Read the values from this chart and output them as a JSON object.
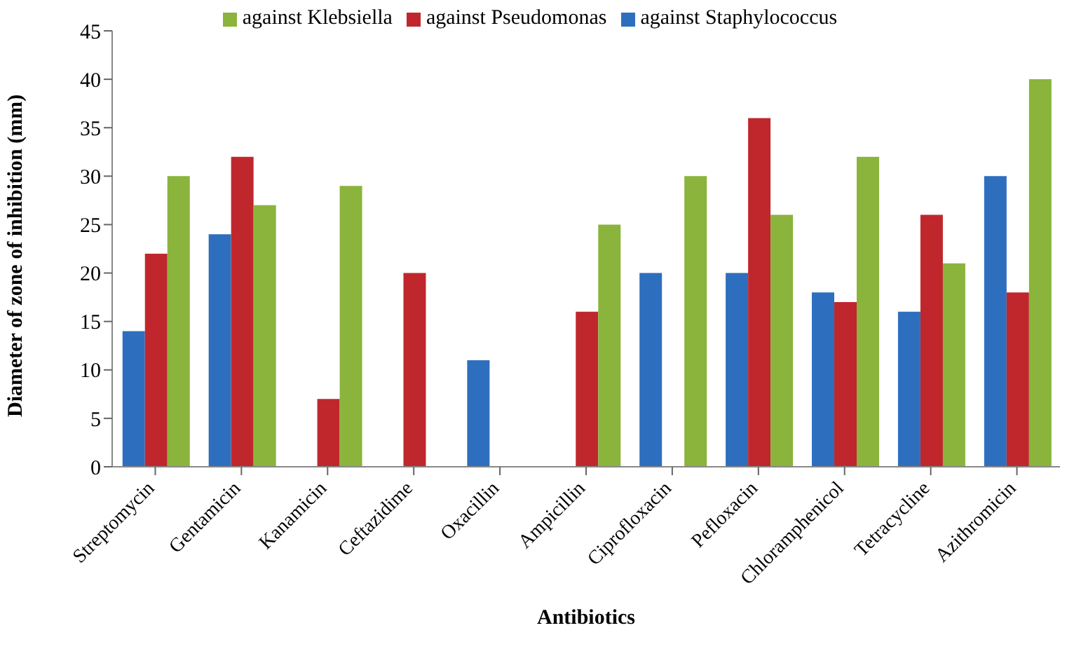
{
  "chart_data": {
    "type": "bar",
    "xlabel": "Antibiotics",
    "ylabel": "Diameter of zone of inhibition (mm)",
    "categories": [
      "Streptomycin",
      "Gentamicin",
      "Kanamicin",
      "Ceftazidime",
      "Oxacillin",
      "Ampicillin",
      "Ciprofloxacin",
      "Pefloxacin",
      "Chloramphenicol",
      "Tetracycline",
      "Azithromicin"
    ],
    "series": [
      {
        "name": "against Staphylococcus",
        "color": "#2e6ebe",
        "values": [
          14,
          24,
          null,
          null,
          11,
          null,
          20,
          20,
          18,
          16,
          30
        ]
      },
      {
        "name": "against Pseudomonas",
        "color": "#c0272d",
        "values": [
          22,
          32,
          7,
          20,
          null,
          16,
          null,
          36,
          17,
          26,
          18
        ]
      },
      {
        "name": "against Klebsiella",
        "color": "#8ab43c",
        "values": [
          30,
          27,
          29,
          null,
          null,
          25,
          30,
          26,
          32,
          21,
          40
        ]
      }
    ],
    "ylim": [
      0,
      45
    ],
    "yticks": [
      0,
      5,
      10,
      15,
      20,
      25,
      30,
      35,
      40,
      45
    ],
    "grid": false,
    "legend": "top"
  }
}
